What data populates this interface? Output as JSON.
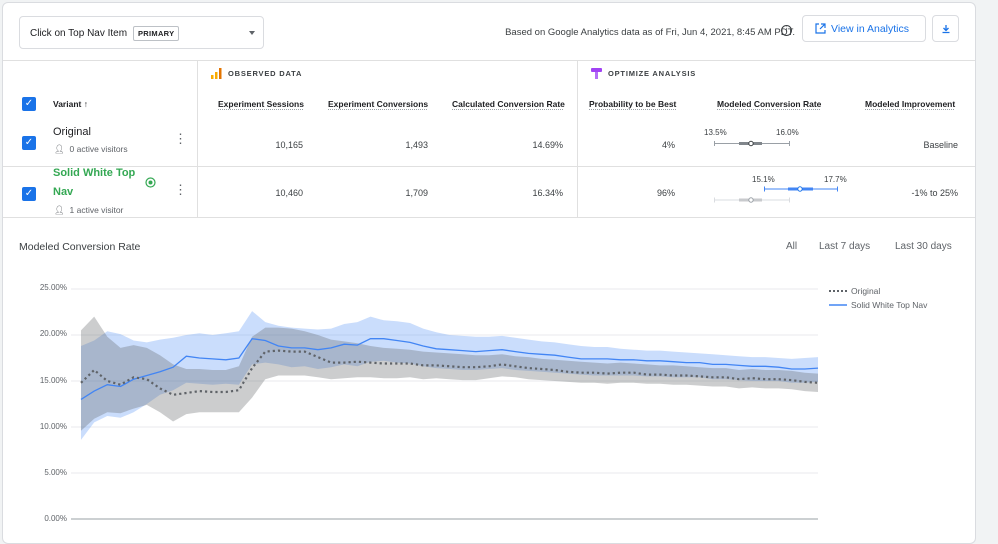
{
  "header": {
    "dropdown_label": "Click on Top Nav Item",
    "dropdown_chip": "PRIMARY",
    "source_text": "Based on Google Analytics data as of Fri, Jun 4, 2021, 8:45 AM PDT.",
    "view_button": "View in Analytics"
  },
  "table": {
    "observed_label": "OBSERVED DATA",
    "optimize_label": "OPTIMIZE ANALYSIS",
    "variant_header": "Variant",
    "columns": [
      "Experiment Sessions",
      "Experiment Conversions",
      "Calculated Conversion Rate",
      "Probability to be Best",
      "Modeled Conversion Rate",
      "Modeled Improvement"
    ],
    "rows": [
      {
        "name": "Original",
        "visitors": "0 active visitors",
        "sessions": "10,165",
        "conversions": "1,493",
        "rate": "14.69%",
        "prob": "4%",
        "mcr_low": "13.5%",
        "mcr_high": "16.0%",
        "improvement": "Baseline"
      },
      {
        "name_line1": "Solid White Top",
        "name_line2": "Nav",
        "visitors": "1 active visitor",
        "sessions": "10,460",
        "conversions": "1,709",
        "rate": "16.34%",
        "prob": "96%",
        "mcr_low": "15.1%",
        "mcr_high": "17.7%",
        "improvement": "-1% to 25%"
      }
    ]
  },
  "chart": {
    "title": "Modeled Conversion Rate",
    "ranges": [
      "All",
      "Last 7 days",
      "Last 30 days"
    ],
    "yticks": [
      "25.00%",
      "20.00%",
      "15.00%",
      "10.00%",
      "5.00%",
      "0.00%"
    ]
  },
  "chart_data": {
    "type": "line",
    "ylim": [
      0,
      25
    ],
    "series": [
      {
        "name": "Original",
        "color": "#5f6368",
        "style": "dotted",
        "values": [
          14.8,
          16.2,
          15.0,
          14.6,
          15.4,
          15.2,
          14.2,
          13.5,
          13.7,
          13.9,
          13.8,
          13.8,
          14.0,
          16.4,
          18.2,
          18.3,
          18.2,
          18.2,
          17.6,
          17.0,
          17.0,
          17.1,
          17.0,
          16.9,
          16.9,
          16.9,
          16.7,
          16.7,
          16.6,
          16.5,
          16.5,
          16.6,
          16.8,
          16.6,
          16.4,
          16.3,
          16.2,
          16.0,
          15.9,
          15.9,
          15.8,
          15.9,
          15.9,
          15.7,
          15.7,
          15.6,
          15.6,
          15.5,
          15.4,
          15.4,
          15.2,
          15.3,
          15.2,
          15.2,
          15.1,
          14.9,
          14.8
        ],
        "upper": [
          20.5,
          22.0,
          19.8,
          18.6,
          18.9,
          18.6,
          17.8,
          16.8,
          16.3,
          16.3,
          16.2,
          16.2,
          16.6,
          19.8,
          20.8,
          20.8,
          20.7,
          20.4,
          20.0,
          19.5,
          19.3,
          19.1,
          18.8,
          18.6,
          18.5,
          18.4,
          18.2,
          18.1,
          18.0,
          17.9,
          17.8,
          17.8,
          17.9,
          17.7,
          17.6,
          17.4,
          17.3,
          17.2,
          17.1,
          17.0,
          16.9,
          17.0,
          16.9,
          16.8,
          16.7,
          16.7,
          16.6,
          16.5,
          16.4,
          16.4,
          16.2,
          16.3,
          16.2,
          16.2,
          16.1,
          15.9,
          15.8
        ],
        "lower": [
          9.6,
          10.9,
          11.6,
          11.5,
          12.0,
          12.4,
          11.6,
          10.6,
          11.4,
          11.6,
          11.6,
          11.6,
          11.6,
          13.2,
          15.2,
          15.6,
          15.6,
          15.6,
          15.4,
          15.2,
          15.3,
          15.4,
          15.4,
          15.3,
          15.3,
          15.4,
          15.2,
          15.3,
          15.2,
          15.1,
          15.1,
          15.3,
          15.5,
          15.4,
          15.2,
          15.1,
          15.0,
          14.9,
          14.8,
          14.8,
          14.7,
          14.8,
          14.8,
          14.7,
          14.7,
          14.6,
          14.6,
          14.5,
          14.4,
          14.4,
          14.2,
          14.3,
          14.2,
          14.2,
          14.1,
          13.9,
          13.8
        ]
      },
      {
        "name": "Solid White Top Nav",
        "color": "#4285f4",
        "style": "solid",
        "values": [
          13.0,
          13.9,
          14.6,
          14.4,
          15.2,
          15.6,
          16.0,
          16.5,
          17.7,
          17.5,
          17.4,
          17.3,
          17.5,
          19.6,
          19.4,
          18.8,
          18.6,
          18.6,
          18.4,
          18.6,
          19.0,
          18.9,
          19.6,
          19.6,
          19.4,
          19.2,
          18.8,
          18.5,
          18.4,
          18.3,
          18.2,
          18.3,
          18.4,
          18.2,
          18.0,
          17.9,
          17.8,
          17.6,
          17.4,
          17.4,
          17.4,
          17.3,
          17.3,
          17.2,
          17.2,
          17.1,
          17.0,
          17.0,
          16.8,
          16.8,
          16.7,
          16.6,
          16.6,
          16.5,
          16.3,
          16.3,
          16.4
        ],
        "upper": [
          18.8,
          19.4,
          20.4,
          20.1,
          19.4,
          19.2,
          19.5,
          19.7,
          20.0,
          20.2,
          20.0,
          20.2,
          20.4,
          22.6,
          21.4,
          21.0,
          20.8,
          20.7,
          20.6,
          20.7,
          21.2,
          21.4,
          22.0,
          21.6,
          21.5,
          21.3,
          20.7,
          20.3,
          20.0,
          19.9,
          19.8,
          19.8,
          19.9,
          19.7,
          19.5,
          19.3,
          19.2,
          19.0,
          18.8,
          18.7,
          18.7,
          18.5,
          18.4,
          18.3,
          18.3,
          18.2,
          18.1,
          18.0,
          17.9,
          17.8,
          17.7,
          17.6,
          17.6,
          17.5,
          17.4,
          17.5,
          17.6
        ],
        "lower": [
          8.6,
          10.5,
          11.2,
          11.0,
          11.6,
          12.5,
          13.5,
          14.0,
          14.8,
          14.7,
          14.6,
          14.7,
          14.6,
          16.8,
          17.0,
          16.8,
          16.5,
          16.6,
          16.3,
          16.5,
          16.8,
          16.6,
          17.1,
          17.2,
          17.0,
          16.9,
          16.6,
          16.4,
          16.3,
          16.2,
          16.2,
          16.3,
          16.4,
          16.2,
          16.1,
          16.0,
          15.9,
          15.8,
          15.7,
          15.6,
          15.6,
          15.6,
          15.6,
          15.5,
          15.5,
          15.4,
          15.4,
          15.4,
          15.2,
          15.2,
          15.1,
          15.0,
          15.0,
          15.0,
          14.8,
          14.8,
          14.9
        ]
      }
    ]
  }
}
